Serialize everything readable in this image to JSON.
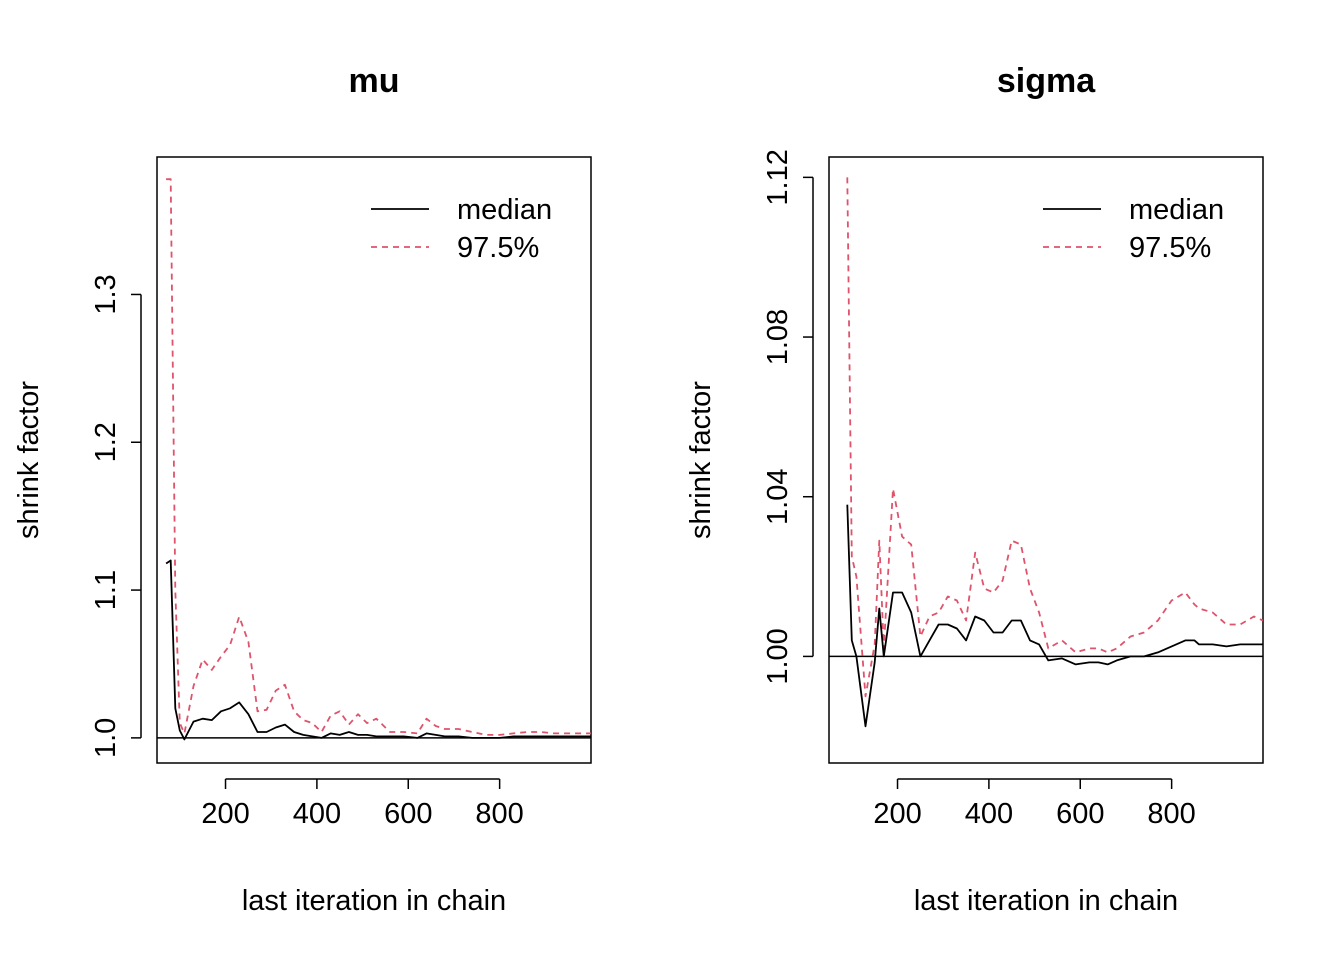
{
  "chart_data": [
    {
      "type": "line",
      "title": "mu",
      "xlabel": "last iteration in chain",
      "ylabel": "shrink factor",
      "xlim": [
        50,
        1000
      ],
      "ylim": [
        0.983,
        1.393
      ],
      "xticks": [
        200,
        400,
        600,
        800
      ],
      "xtick_labels": [
        "200",
        "400",
        "600",
        "800"
      ],
      "yticks": [
        1.0,
        1.1,
        1.2,
        1.3
      ],
      "ytick_labels": [
        "1.0",
        "1.1",
        "1.2",
        "1.3"
      ],
      "reference_line": 1.0,
      "legend": {
        "position": "top-right",
        "entries": [
          "median",
          "97.5%"
        ]
      },
      "series": [
        {
          "name": "median",
          "color": "#000000",
          "dash": "solid",
          "points": [
            [
              70,
              1.118
            ],
            [
              80,
              1.12
            ],
            [
              90,
              1.02
            ],
            [
              100,
              1.005
            ],
            [
              110,
              0.999
            ],
            [
              130,
              1.011
            ],
            [
              150,
              1.013
            ],
            [
              170,
              1.012
            ],
            [
              190,
              1.018
            ],
            [
              210,
              1.02
            ],
            [
              230,
              1.024
            ],
            [
              250,
              1.016
            ],
            [
              270,
              1.004
            ],
            [
              290,
              1.004
            ],
            [
              310,
              1.007
            ],
            [
              330,
              1.009
            ],
            [
              350,
              1.004
            ],
            [
              370,
              1.002
            ],
            [
              390,
              1.001
            ],
            [
              410,
              1.0
            ],
            [
              430,
              1.003
            ],
            [
              450,
              1.002
            ],
            [
              470,
              1.004
            ],
            [
              490,
              1.002
            ],
            [
              510,
              1.002
            ],
            [
              530,
              1.001
            ],
            [
              560,
              1.001
            ],
            [
              590,
              1.001
            ],
            [
              620,
              1.0
            ],
            [
              640,
              1.003
            ],
            [
              660,
              1.002
            ],
            [
              680,
              1.001
            ],
            [
              710,
              1.001
            ],
            [
              740,
              1.0
            ],
            [
              770,
              1.0
            ],
            [
              800,
              1.0
            ],
            [
              830,
              1.001
            ],
            [
              860,
              1.001
            ],
            [
              890,
              1.001
            ],
            [
              920,
              1.001
            ],
            [
              950,
              1.001
            ],
            [
              980,
              1.001
            ],
            [
              1000,
              1.001
            ]
          ]
        },
        {
          "name": "97.5%",
          "color": "#DF536B",
          "dash": "dashed",
          "points": [
            [
              70,
              1.378
            ],
            [
              80,
              1.378
            ],
            [
              90,
              1.1
            ],
            [
              100,
              1.01
            ],
            [
              110,
              1.003
            ],
            [
              130,
              1.035
            ],
            [
              150,
              1.053
            ],
            [
              170,
              1.046
            ],
            [
              190,
              1.055
            ],
            [
              210,
              1.063
            ],
            [
              230,
              1.082
            ],
            [
              250,
              1.065
            ],
            [
              270,
              1.018
            ],
            [
              290,
              1.019
            ],
            [
              310,
              1.032
            ],
            [
              330,
              1.036
            ],
            [
              350,
              1.018
            ],
            [
              370,
              1.012
            ],
            [
              390,
              1.01
            ],
            [
              410,
              1.004
            ],
            [
              430,
              1.015
            ],
            [
              450,
              1.018
            ],
            [
              470,
              1.009
            ],
            [
              490,
              1.016
            ],
            [
              510,
              1.01
            ],
            [
              530,
              1.013
            ],
            [
              560,
              1.004
            ],
            [
              590,
              1.004
            ],
            [
              620,
              1.003
            ],
            [
              640,
              1.013
            ],
            [
              660,
              1.008
            ],
            [
              680,
              1.006
            ],
            [
              710,
              1.006
            ],
            [
              740,
              1.004
            ],
            [
              770,
              1.002
            ],
            [
              800,
              1.002
            ],
            [
              830,
              1.003
            ],
            [
              860,
              1.004
            ],
            [
              890,
              1.004
            ],
            [
              920,
              1.003
            ],
            [
              950,
              1.003
            ],
            [
              980,
              1.003
            ],
            [
              1000,
              1.003
            ]
          ]
        }
      ]
    },
    {
      "type": "line",
      "title": "sigma",
      "xlabel": "last iteration in chain",
      "ylabel": "shrink factor",
      "xlim": [
        50,
        1000
      ],
      "ylim": [
        0.9733,
        1.1251
      ],
      "xticks": [
        200,
        400,
        600,
        800
      ],
      "xtick_labels": [
        "200",
        "400",
        "600",
        "800"
      ],
      "yticks": [
        1.0,
        1.04,
        1.08,
        1.12
      ],
      "ytick_labels": [
        "1.00",
        "1.04",
        "1.08",
        "1.12"
      ],
      "reference_line": 1.0,
      "legend": {
        "position": "top-right",
        "entries": [
          "median",
          "97.5%"
        ]
      },
      "series": [
        {
          "name": "median",
          "color": "#000000",
          "dash": "solid",
          "points": [
            [
              90,
              1.038
            ],
            [
              100,
              1.004
            ],
            [
              110,
              1.0
            ],
            [
              130,
              0.9825
            ],
            [
              150,
              0.9985
            ],
            [
              160,
              1.012
            ],
            [
              170,
              1.0
            ],
            [
              190,
              1.016
            ],
            [
              210,
              1.016
            ],
            [
              230,
              1.011
            ],
            [
              250,
              1.0
            ],
            [
              270,
              1.004
            ],
            [
              290,
              1.008
            ],
            [
              310,
              1.008
            ],
            [
              330,
              1.007
            ],
            [
              350,
              1.004
            ],
            [
              370,
              1.01
            ],
            [
              390,
              1.009
            ],
            [
              410,
              1.006
            ],
            [
              430,
              1.006
            ],
            [
              450,
              1.009
            ],
            [
              470,
              1.009
            ],
            [
              490,
              1.004
            ],
            [
              510,
              1.003
            ],
            [
              530,
              0.999
            ],
            [
              560,
              0.9995
            ],
            [
              590,
              0.998
            ],
            [
              620,
              0.9985
            ],
            [
              640,
              0.9985
            ],
            [
              660,
              0.998
            ],
            [
              680,
              0.999
            ],
            [
              710,
              1.0
            ],
            [
              740,
              1.0
            ],
            [
              770,
              1.001
            ],
            [
              800,
              1.0025
            ],
            [
              830,
              1.004
            ],
            [
              850,
              1.004
            ],
            [
              860,
              1.003
            ],
            [
              890,
              1.003
            ],
            [
              920,
              1.0025
            ],
            [
              950,
              1.003
            ],
            [
              980,
              1.003
            ],
            [
              1000,
              1.003
            ]
          ]
        },
        {
          "name": "97.5%",
          "color": "#DF536B",
          "dash": "dashed",
          "points": [
            [
              90,
              1.12
            ],
            [
              100,
              1.025
            ],
            [
              110,
              1.02
            ],
            [
              130,
              0.99
            ],
            [
              150,
              1.003
            ],
            [
              160,
              1.029
            ],
            [
              170,
              1.002
            ],
            [
              190,
              1.042
            ],
            [
              210,
              1.03
            ],
            [
              230,
              1.028
            ],
            [
              250,
              1.005
            ],
            [
              270,
              1.01
            ],
            [
              290,
              1.011
            ],
            [
              310,
              1.015
            ],
            [
              330,
              1.014
            ],
            [
              350,
              1.009
            ],
            [
              370,
              1.026
            ],
            [
              390,
              1.017
            ],
            [
              410,
              1.016
            ],
            [
              430,
              1.019
            ],
            [
              450,
              1.029
            ],
            [
              470,
              1.028
            ],
            [
              490,
              1.017
            ],
            [
              510,
              1.011
            ],
            [
              530,
              1.002
            ],
            [
              560,
              1.004
            ],
            [
              590,
              1.001
            ],
            [
              620,
              1.002
            ],
            [
              640,
              1.002
            ],
            [
              660,
              1.001
            ],
            [
              680,
              1.002
            ],
            [
              710,
              1.005
            ],
            [
              740,
              1.006
            ],
            [
              770,
              1.009
            ],
            [
              800,
              1.014
            ],
            [
              830,
              1.016
            ],
            [
              850,
              1.013
            ],
            [
              860,
              1.012
            ],
            [
              890,
              1.011
            ],
            [
              920,
              1.008
            ],
            [
              950,
              1.008
            ],
            [
              980,
              1.01
            ],
            [
              1000,
              1.009
            ]
          ]
        }
      ]
    }
  ]
}
